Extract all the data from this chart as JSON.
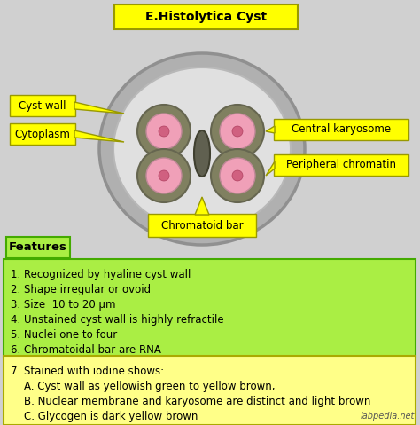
{
  "title": "E.Histolytica Cyst",
  "bg_color": "#d0d0d0",
  "title_bg": "#ffff00",
  "label_bg": "#ffff00",
  "features_bg": "#aaee44",
  "iodine_bg": "#ffff88",
  "cyst_ring_color": "#b0b0b0",
  "cyst_inner_color": "#e0e0e0",
  "nucleus_ring_color": "#808060",
  "nucleus_pink": "#f0a0b8",
  "nucleus_dot": "#d06080",
  "chromatoid_color": "#606050",
  "labels": {
    "cyst_wall": "Cyst wall",
    "cytoplasm": "Cytoplasm",
    "central_karyosome": "Central karyosome",
    "peripheral_chromatin": "Peripheral chromatin",
    "chromatoid_bar": "Chromatoid bar"
  },
  "features_title": "Features",
  "features_lines": [
    "1. Recognized by hyaline cyst wall",
    "2. Shape irregular or ovoid",
    "3. Size  10 to 20 μm",
    "4. Unstained cyst wall is highly refractile",
    "5. Nuclei one to four",
    "6. Chromatoidal bar are RNA"
  ],
  "iodine_lines": [
    "7. Stained with iodine shows:",
    "    A. Cyst wall as yellowish green to yellow brown,",
    "    B. Nuclear membrane and karyosome are distinct and light brown",
    "    C. Glycogen is dark yellow brown"
  ],
  "watermark": "labpedia.net",
  "fig_w": 4.74,
  "fig_h": 4.79,
  "dpi": 100
}
